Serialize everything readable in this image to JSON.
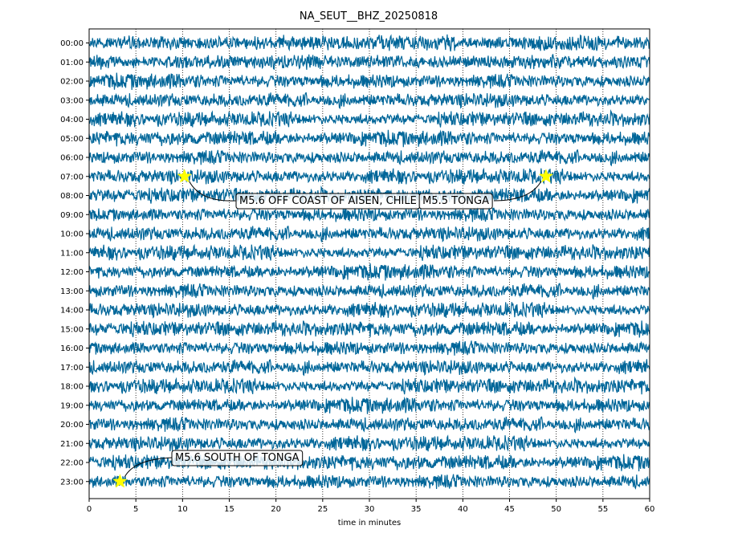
{
  "chart_data": {
    "type": "line",
    "title": "NA_SEUT__BHZ_20250818",
    "xlabel": "time in minutes",
    "ylabel": "",
    "xlim": [
      0,
      60
    ],
    "x_ticks": [
      0,
      5,
      10,
      15,
      20,
      25,
      30,
      35,
      40,
      45,
      50,
      55,
      60
    ],
    "grid": "vertical dotted at each x tick",
    "trace_color": "#006699",
    "rows": [
      "00:00",
      "01:00",
      "02:00",
      "03:00",
      "04:00",
      "05:00",
      "06:00",
      "07:00",
      "08:00",
      "09:00",
      "10:00",
      "11:00",
      "12:00",
      "13:00",
      "14:00",
      "15:00",
      "16:00",
      "17:00",
      "18:00",
      "19:00",
      "20:00",
      "21:00",
      "22:00",
      "23:00"
    ],
    "events": [
      {
        "label": "M5.6 OFF COAST OF AISEN, CHILE",
        "row": "07:00",
        "minute": 10.2,
        "marker_color": "#ffff00"
      },
      {
        "label": "M5.5 TONGA",
        "row": "07:00",
        "minute": 48.9,
        "marker_color": "#ffff00"
      },
      {
        "label": "M5.6 SOUTH OF TONGA",
        "row": "23:00",
        "minute": 3.3,
        "marker_color": "#ffff00"
      }
    ]
  }
}
